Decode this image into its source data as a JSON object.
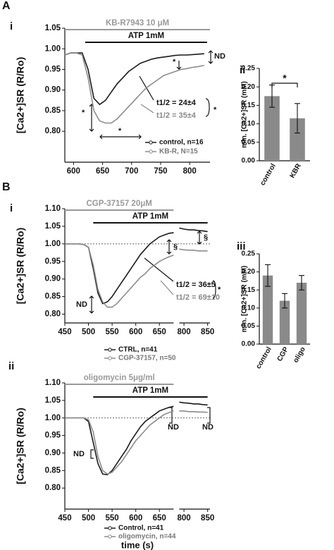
{
  "panel_labels": [
    "A",
    "i",
    "ii",
    "B",
    "i",
    "iii",
    "ii"
  ],
  "chart_data": [
    {
      "type": "line",
      "ylabel": "[Ca2+]SR (R/Ro)",
      "x": [
        585,
        595,
        605,
        615,
        625,
        635,
        645,
        655,
        665,
        675,
        685,
        695,
        705,
        715,
        725,
        735,
        745,
        755,
        765,
        775,
        785,
        795,
        805,
        815,
        825
      ],
      "series": [
        {
          "name": "control, n=16",
          "color": "#1a1a1a",
          "values": [
            0.985,
            0.99,
            0.99,
            0.99,
            0.95,
            0.88,
            0.865,
            0.875,
            0.895,
            0.915,
            0.93,
            0.945,
            0.955,
            0.965,
            0.97,
            0.975,
            0.978,
            0.98,
            0.982,
            0.984,
            0.985,
            0.985,
            0.986,
            0.987,
            0.988
          ]
        },
        {
          "name": "KB-R, N=15",
          "color": "#8c8c8c",
          "values": [
            0.985,
            0.99,
            0.99,
            0.985,
            0.93,
            0.85,
            0.825,
            0.82,
            0.82,
            0.83,
            0.845,
            0.86,
            0.875,
            0.89,
            0.905,
            0.915,
            0.925,
            0.935,
            0.94,
            0.945,
            0.95,
            0.952,
            0.955,
            0.957,
            0.96
          ]
        }
      ],
      "xlim": [
        585,
        835
      ],
      "xticks": [
        600,
        650,
        700,
        750,
        800
      ],
      "ylim": [
        0.725,
        1.05
      ],
      "yticks": [
        {
          "value": 0.8,
          "label": "0.80"
        },
        0.85,
        {
          "value": 0.9,
          "label": "0.90"
        },
        0.95,
        {
          "value": 1.0,
          "label": "1.00"
        },
        1.05
      ],
      "treatments": [
        {
          "label": "KB-R7943 10 μM",
          "range": [
            585,
            835
          ],
          "color": "#999999"
        },
        {
          "label": "ATP 1mM",
          "range": [
            620,
            830
          ],
          "color": "#111111"
        }
      ],
      "legend": "lower right",
      "annotations": [
        "ND",
        "*",
        "*",
        "*",
        "*",
        "t1/2 = 24±4",
        "t1/2 = 35±4"
      ]
    },
    {
      "type": "bar",
      "ylabel": "min. [Ca2+]SR (mM)",
      "categories": [
        "control",
        "KBR"
      ],
      "values": [
        0.175,
        0.115
      ],
      "errors": [
        0.03,
        0.04
      ],
      "color": "#8a8a8a",
      "ylim": [
        0,
        0.25
      ],
      "yticks": [
        {
          "value": 0,
          "label": "0.00"
        },
        0.05,
        {
          "value": 0.1,
          "label": "0.10"
        },
        0.15,
        {
          "value": 0.2,
          "label": "0.20"
        },
        0.25
      ],
      "annotations": [
        "*"
      ]
    },
    {
      "type": "line",
      "ylabel": "[Ca2+]SR (R/Ro)",
      "x": [
        450,
        460,
        470,
        480,
        490,
        500,
        510,
        520,
        530,
        540,
        550,
        560,
        570,
        580,
        590,
        600,
        610,
        620,
        630,
        640,
        650,
        660,
        670,
        680,
        null,
        790,
        800,
        810,
        820,
        830,
        840,
        850
      ],
      "series": [
        {
          "name": "CTRL, n=41",
          "color": "#1a1a1a",
          "values": [
            1.0,
            1.0,
            1.0,
            1.0,
            0.998,
            0.99,
            0.93,
            0.86,
            0.83,
            0.835,
            0.85,
            0.87,
            0.89,
            0.91,
            0.93,
            0.95,
            0.97,
            0.985,
            1.0,
            1.01,
            1.02,
            1.025,
            1.03,
            1.032,
            null,
            1.045,
            1.042,
            1.04,
            1.04,
            1.038,
            1.037,
            1.035
          ]
        },
        {
          "name": "CGP-37157, n=50",
          "color": "#8c8c8c",
          "values": [
            1.0,
            1.0,
            1.0,
            1.0,
            0.998,
            0.99,
            0.94,
            0.87,
            0.835,
            0.82,
            0.82,
            0.83,
            0.845,
            0.86,
            0.875,
            0.89,
            0.905,
            0.915,
            0.93,
            0.94,
            0.95,
            0.957,
            0.963,
            0.968,
            null,
            0.985,
            0.983,
            0.982,
            0.982,
            0.98,
            0.98,
            0.98
          ]
        }
      ],
      "xsegments": [
        [
          450,
          680
        ],
        [
          790,
          855
        ]
      ],
      "xticks": [
        450,
        500,
        550,
        600,
        650,
        800,
        850
      ],
      "ylim": [
        0.775,
        1.1
      ],
      "yticks": [
        {
          "value": 0.8,
          "label": "0.80"
        },
        0.85,
        {
          "value": 0.9,
          "label": "0.90"
        },
        0.95,
        {
          "value": 1.0,
          "label": "1.00"
        },
        1.05,
        {
          "value": 1.1,
          "label": "1.10"
        }
      ],
      "refline": 1.0,
      "treatments": [
        {
          "label": "CGP-37157 20μM",
          "range": [
            450,
            680
          ],
          "color": "#999999"
        },
        {
          "label": "ATP 1mM",
          "range": [
            510,
            850
          ],
          "color": "#111111"
        }
      ],
      "legend": "below",
      "annotations": [
        "§",
        "§",
        "ND",
        "t1/2 = 36±5",
        "t1/2 = 69±10",
        "*"
      ]
    },
    {
      "type": "bar",
      "ylabel": "min. [Ca2+]SR (mM)",
      "categories": [
        "control",
        "CGP",
        "oligo"
      ],
      "values": [
        0.19,
        0.12,
        0.17
      ],
      "errors": [
        0.03,
        0.02,
        0.02
      ],
      "color": "#8a8a8a",
      "ylim": [
        0,
        0.25
      ],
      "yticks": [
        {
          "value": 0,
          "label": "0.00"
        },
        0.05,
        {
          "value": 0.1,
          "label": "0.10"
        },
        0.15,
        {
          "value": 0.2,
          "label": "0.20"
        },
        0.25
      ]
    },
    {
      "type": "line",
      "ylabel": "[Ca2+]SR (R/Ro)",
      "xlabel": "time (s)",
      "x": [
        450,
        460,
        470,
        480,
        490,
        500,
        510,
        520,
        530,
        540,
        550,
        560,
        570,
        580,
        590,
        600,
        610,
        620,
        630,
        640,
        650,
        660,
        670,
        680,
        null,
        790,
        800,
        810,
        820,
        830,
        840,
        850
      ],
      "series": [
        {
          "name": "Control, n=41",
          "color": "#1a1a1a",
          "values": [
            1.0,
            1.0,
            1.0,
            1.0,
            1.0,
            0.99,
            0.93,
            0.87,
            0.84,
            0.838,
            0.85,
            0.87,
            0.89,
            0.91,
            0.935,
            0.955,
            0.975,
            0.99,
            1.0,
            1.01,
            1.02,
            1.025,
            1.03,
            1.033,
            null,
            1.045,
            1.043,
            1.042,
            1.04,
            1.04,
            1.038,
            1.037
          ]
        },
        {
          "name": "oligomycin, n=44",
          "color": "#8c8c8c",
          "values": [
            1.0,
            1.0,
            1.0,
            1.0,
            1.0,
            0.995,
            0.96,
            0.89,
            0.85,
            0.84,
            0.845,
            0.86,
            0.875,
            0.895,
            0.915,
            0.935,
            0.95,
            0.965,
            0.98,
            0.99,
            1.0,
            1.01,
            1.015,
            1.02,
            null,
            1.02,
            1.02,
            1.018,
            1.018,
            1.017,
            1.017,
            1.016
          ]
        }
      ],
      "xsegments": [
        [
          450,
          680
        ],
        [
          790,
          855
        ]
      ],
      "xticks": [
        450,
        500,
        550,
        600,
        650,
        800,
        850
      ],
      "ylim": [
        0.74,
        1.1
      ],
      "yticks": [
        {
          "value": 0.8,
          "label": "0.80"
        },
        0.85,
        {
          "value": 0.9,
          "label": "0.90"
        },
        0.95,
        {
          "value": 1.0,
          "label": "1.00"
        },
        1.05,
        {
          "value": 1.1,
          "label": "1.10"
        }
      ],
      "refline": 1.0,
      "treatments": [
        {
          "label": "oligomycin 5μg/ml",
          "range": [
            450,
            680
          ],
          "color": "#999999"
        },
        {
          "label": "ATP 1mM",
          "range": [
            510,
            850
          ],
          "color": "#111111"
        }
      ],
      "legend": "below",
      "annotations": [
        "ND",
        "ND",
        "ND"
      ]
    }
  ]
}
